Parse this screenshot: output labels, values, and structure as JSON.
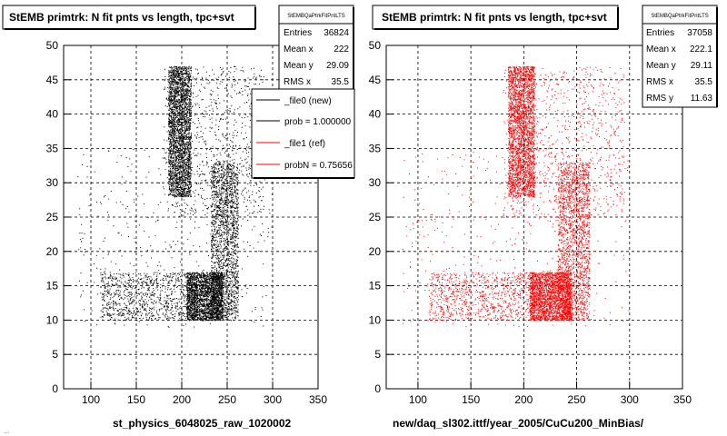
{
  "canvas_title_fragment": "...",
  "chart_data": [
    {
      "type": "scatter",
      "title": "StEMB primtrk: N fit pnts vs length, tpc+svt",
      "xlabel": "st_physics_6048025_raw_1020002",
      "ylabel": "",
      "xlim": [
        70,
        350
      ],
      "ylim": [
        0,
        50
      ],
      "xticks": [
        "100",
        "150",
        "200",
        "250",
        "300",
        "350"
      ],
      "yticks": [
        "0",
        "5",
        "10",
        "15",
        "20",
        "25",
        "30",
        "35",
        "40",
        "45",
        "50"
      ],
      "color": "#000000",
      "grid": true,
      "stats": {
        "name": "StEMBQaPtrkFitPntLTS",
        "rows": [
          {
            "label": "Entries",
            "value": "36824"
          },
          {
            "label": "Mean x",
            "value": "222"
          },
          {
            "label": "Mean y",
            "value": "29.09"
          },
          {
            "label": "RMS x",
            "value": "35.5"
          }
        ]
      },
      "legend": {
        "position": "top-right",
        "entries": [
          {
            "label": "_file0 (new)",
            "color": "#000000"
          },
          {
            "label": "prob = 1.000000",
            "color": "#000000"
          },
          {
            "label": "_file1 (ref)",
            "color": "#ff0000"
          },
          {
            "label": "probN = 0.75656",
            "color": "#ff0000"
          }
        ]
      },
      "regions": [
        {
          "x": [
            185,
            210
          ],
          "y": [
            28,
            47
          ],
          "density": 1.0
        },
        {
          "x": [
            205,
            245
          ],
          "y": [
            10,
            17
          ],
          "density": 0.9
        },
        {
          "x": [
            232,
            262
          ],
          "y": [
            10,
            33
          ],
          "density": 0.7
        },
        {
          "x": [
            180,
            290
          ],
          "y": [
            25,
            47
          ],
          "density": 0.35
        },
        {
          "x": [
            110,
            210
          ],
          "y": [
            10,
            17
          ],
          "density": 0.35
        },
        {
          "x": [
            85,
            300
          ],
          "y": [
            9,
            35
          ],
          "density": 0.15
        }
      ]
    },
    {
      "type": "scatter",
      "title": "StEMB primtrk: N fit pnts vs length, tpc+svt",
      "xlabel": "new/daq_sl302.ittf/year_2005/CuCu200_MinBias/",
      "ylabel": "",
      "xlim": [
        70,
        350
      ],
      "ylim": [
        0,
        50
      ],
      "xticks": [
        "100",
        "150",
        "200",
        "250",
        "300",
        "350"
      ],
      "yticks": [
        "0",
        "5",
        "10",
        "15",
        "20",
        "25",
        "30",
        "35",
        "40",
        "45",
        "50"
      ],
      "color": "#ff0000",
      "grid": true,
      "stats": {
        "name": "StEMBQaPtrkFitPntLTS",
        "rows": [
          {
            "label": "Entries",
            "value": "37058"
          },
          {
            "label": "Mean x",
            "value": "222.1"
          },
          {
            "label": "Mean y",
            "value": "29.11"
          },
          {
            "label": "RMS x",
            "value": "35.5"
          },
          {
            "label": "RMS y",
            "value": "11.63"
          }
        ]
      },
      "regions": [
        {
          "x": [
            185,
            210
          ],
          "y": [
            28,
            47
          ],
          "density": 1.0
        },
        {
          "x": [
            205,
            245
          ],
          "y": [
            10,
            17
          ],
          "density": 0.9
        },
        {
          "x": [
            232,
            262
          ],
          "y": [
            10,
            33
          ],
          "density": 0.7
        },
        {
          "x": [
            180,
            295
          ],
          "y": [
            25,
            47
          ],
          "density": 0.35
        },
        {
          "x": [
            110,
            210
          ],
          "y": [
            10,
            17
          ],
          "density": 0.35
        },
        {
          "x": [
            85,
            300
          ],
          "y": [
            9,
            35
          ],
          "density": 0.15
        }
      ]
    }
  ]
}
